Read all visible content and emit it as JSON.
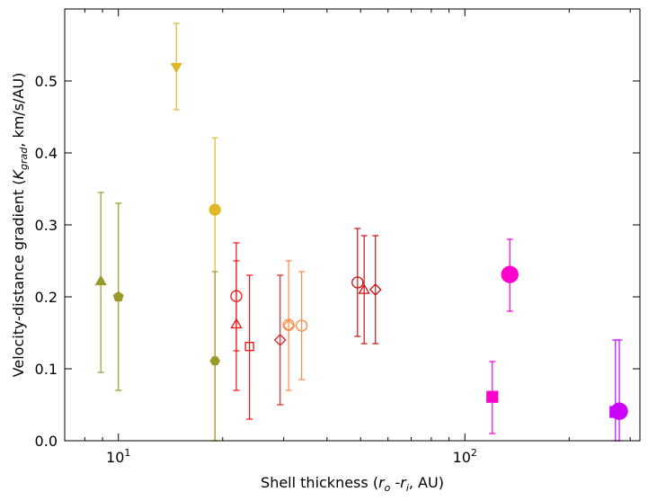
{
  "chart_data": {
    "type": "scatter",
    "title": "",
    "xlabel": "Shell thickness (r_o - r_i, AU)",
    "xlabel_parts": {
      "pre": "Shell thickness (",
      "r1": "r",
      "s1": "o",
      "mid": " -",
      "r2": "r",
      "s2": "i",
      "post": ", AU)"
    },
    "ylabel": "Velocity-distance gradient (K_grad, km/s/AU)",
    "ylabel_parts": {
      "pre": "Velocity-distance gradient (",
      "k": "K",
      "sub": "grad",
      "post": ", km/s/AU)"
    },
    "xscale": "log",
    "xlim": [
      7,
      320
    ],
    "ylim": [
      0.0,
      0.6
    ],
    "x_ticks": [
      {
        "value": 10,
        "base": "10",
        "exp": "1"
      },
      {
        "value": 100,
        "base": "10",
        "exp": "2"
      }
    ],
    "y_ticks": [
      {
        "value": 0.0,
        "label": "0.0"
      },
      {
        "value": 0.1,
        "label": "0.1"
      },
      {
        "value": 0.2,
        "label": "0.2"
      },
      {
        "value": 0.3,
        "label": "0.3"
      },
      {
        "value": 0.4,
        "label": "0.4"
      },
      {
        "value": 0.5,
        "label": "0.5"
      }
    ],
    "points": [
      {
        "x": 8.9,
        "y": 0.222,
        "yerr_low": 0.127,
        "yerr_high": 0.123,
        "marker": "triangle-up",
        "filled": true,
        "color": "#9a9a2a"
      },
      {
        "x": 10.0,
        "y": 0.2,
        "yerr_low": 0.13,
        "yerr_high": 0.13,
        "marker": "pentagon",
        "filled": true,
        "color": "#9a9a2a"
      },
      {
        "x": 14.7,
        "y": 0.519,
        "yerr_low": 0.059,
        "yerr_high": 0.061,
        "marker": "triangle-down",
        "filled": true,
        "color": "#e0b82a"
      },
      {
        "x": 19.0,
        "y": 0.321,
        "yerr_low": 0.321,
        "yerr_high": 0.1,
        "marker": "circle",
        "filled": true,
        "color": "#e0b82a"
      },
      {
        "x": 19.0,
        "y": 0.111,
        "yerr_low": 0.111,
        "yerr_high": 0.124,
        "marker": "hexagon",
        "filled": true,
        "color": "#9a9a2a"
      },
      {
        "x": 21.9,
        "y": 0.162,
        "yerr_low": 0.092,
        "yerr_high": 0.088,
        "marker": "triangle-up",
        "filled": false,
        "color": "#ee1111"
      },
      {
        "x": 21.9,
        "y": 0.201,
        "yerr_low": 0.076,
        "yerr_high": 0.074,
        "marker": "circle",
        "filled": false,
        "color": "#ee1111"
      },
      {
        "x": 23.9,
        "y": 0.131,
        "yerr_low": 0.101,
        "yerr_high": 0.099,
        "marker": "square",
        "filled": false,
        "color": "#ee1111"
      },
      {
        "x": 29.3,
        "y": 0.14,
        "yerr_low": 0.09,
        "yerr_high": 0.09,
        "marker": "diamond",
        "filled": false,
        "color": "#dd2222"
      },
      {
        "x": 31.0,
        "y": 0.16,
        "yerr_low": 0.09,
        "yerr_high": 0.09,
        "marker": "diamond",
        "filled": false,
        "color": "#ff8844"
      },
      {
        "x": 31.0,
        "y": 0.161,
        "yerr_low": 0.0,
        "yerr_high": 0.0,
        "marker": "circle",
        "filled": false,
        "color": "#ff8844"
      },
      {
        "x": 33.8,
        "y": 0.16,
        "yerr_low": 0.075,
        "yerr_high": 0.075,
        "marker": "circle",
        "filled": false,
        "color": "#ff8844"
      },
      {
        "x": 49.0,
        "y": 0.22,
        "yerr_low": 0.075,
        "yerr_high": 0.075,
        "marker": "circle",
        "filled": false,
        "color": "#cc1111"
      },
      {
        "x": 51.2,
        "y": 0.21,
        "yerr_low": 0.075,
        "yerr_high": 0.075,
        "marker": "triangle-up",
        "filled": false,
        "color": "#cc1111"
      },
      {
        "x": 55.2,
        "y": 0.21,
        "yerr_low": 0.075,
        "yerr_high": 0.075,
        "marker": "diamond",
        "filled": false,
        "color": "#cc1111"
      },
      {
        "x": 120.0,
        "y": 0.061,
        "yerr_low": 0.051,
        "yerr_high": 0.049,
        "marker": "square",
        "filled": true,
        "color": "#ff00cc"
      },
      {
        "x": 134.8,
        "y": 0.231,
        "yerr_low": 0.051,
        "yerr_high": 0.049,
        "marker": "circle-large",
        "filled": true,
        "color": "#ff00cc"
      },
      {
        "x": 272.0,
        "y": 0.04,
        "yerr_low": 0.04,
        "yerr_high": 0.1,
        "marker": "square",
        "filled": true,
        "color": "#cc00ff"
      },
      {
        "x": 279.0,
        "y": 0.041,
        "yerr_low": 0.041,
        "yerr_high": 0.099,
        "marker": "circle-large",
        "filled": true,
        "color": "#cc00ff"
      }
    ]
  }
}
